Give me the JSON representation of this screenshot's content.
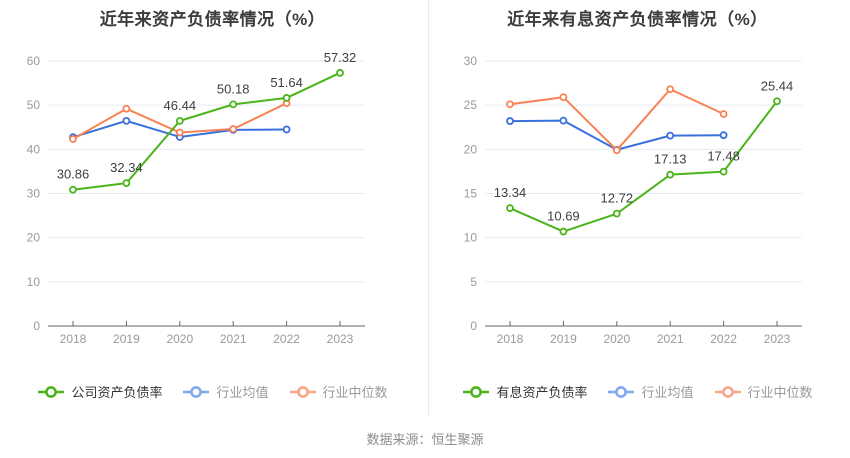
{
  "page": {
    "source_note": "数据来源：恒生聚源"
  },
  "colors": {
    "green": "#4cb41b",
    "blue": "#3a70dd",
    "orange": "#f98254",
    "legend_green": "#4cb41b",
    "legend_blue": "#82a7f1",
    "legend_orange": "#f9a388",
    "grid_line": "#e4ebf5",
    "axis_line": "#666666",
    "axis_text": "#9a9a9a",
    "value_label": "#3f3f3f",
    "title_text": "#3c3c3c"
  },
  "chart_data": [
    {
      "type": "line",
      "title": "近年来资产负债率情况（%）",
      "categories": [
        "2018",
        "2019",
        "2020",
        "2021",
        "2022",
        "2023"
      ],
      "ylim": [
        0,
        60
      ],
      "ystep": 10,
      "yticks": [
        0,
        10,
        20,
        30,
        40,
        50,
        60
      ],
      "grid": true,
      "legend_position": "bottom",
      "series": [
        {
          "name": "公司资产负债率",
          "color_key": "green",
          "legend_color_key": "legend_green",
          "show_labels": true,
          "values": [
            30.86,
            32.34,
            46.44,
            50.18,
            51.64,
            57.32
          ]
        },
        {
          "name": "行业均值",
          "color_key": "blue",
          "legend_color_key": "legend_blue",
          "show_labels": false,
          "values": [
            42.75,
            46.45,
            42.8,
            44.4,
            44.5,
            null
          ]
        },
        {
          "name": "行业中位数",
          "color_key": "orange",
          "legend_color_key": "legend_orange",
          "show_labels": false,
          "values": [
            42.35,
            49.2,
            43.8,
            44.6,
            50.45,
            null
          ]
        }
      ]
    },
    {
      "type": "line",
      "title": "近年来有息资产负债率情况（%）",
      "categories": [
        "2018",
        "2019",
        "2020",
        "2021",
        "2022",
        "2023"
      ],
      "ylim": [
        0,
        30
      ],
      "ystep": 5,
      "yticks": [
        0,
        5,
        10,
        15,
        20,
        25,
        30
      ],
      "grid": true,
      "legend_position": "bottom",
      "series": [
        {
          "name": "有息资产负债率",
          "color_key": "green",
          "legend_color_key": "legend_green",
          "show_labels": true,
          "values": [
            13.34,
            10.69,
            12.72,
            17.13,
            17.48,
            25.44
          ]
        },
        {
          "name": "行业均值",
          "color_key": "blue",
          "legend_color_key": "legend_blue",
          "show_labels": false,
          "values": [
            23.2,
            23.25,
            19.95,
            21.55,
            21.6,
            null
          ]
        },
        {
          "name": "行业中位数",
          "color_key": "orange",
          "legend_color_key": "legend_orange",
          "show_labels": false,
          "values": [
            25.1,
            25.9,
            19.9,
            26.8,
            24.0,
            null
          ]
        }
      ]
    }
  ]
}
